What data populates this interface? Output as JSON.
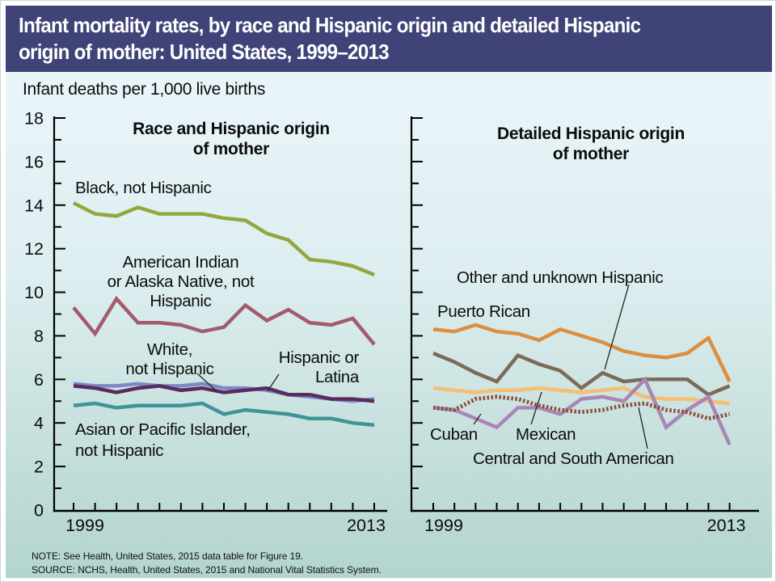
{
  "title_lines": [
    "Infant mortality rates, by race and Hispanic origin and detailed Hispanic",
    "origin of mother: United States, 1999–2013"
  ],
  "units_label": "Infant deaths per 1,000 live births",
  "notes": {
    "note": "NOTE: See Health, United States, 2015 data table for Figure 19.",
    "source": "SOURCE: NCHS, Health, United States, 2015 and National Vital Statistics System."
  },
  "colors": {
    "title_bar_bg": "#3f4377",
    "title_text": "#ffffff",
    "background_top": "#eaf5fa",
    "background_bottom": "#b3d4d0",
    "axis": "#000000"
  },
  "chart_data": [
    {
      "panel": "left",
      "type": "line",
      "title_lines": [
        "Race and Hispanic origin",
        "of mother"
      ],
      "x": [
        1999,
        2000,
        2001,
        2002,
        2003,
        2004,
        2005,
        2006,
        2007,
        2008,
        2009,
        2010,
        2011,
        2012,
        2013
      ],
      "x_axis_labels": [
        "1999",
        "2013"
      ],
      "ylim": [
        0,
        18
      ],
      "yticks": [
        0,
        2,
        4,
        6,
        8,
        10,
        12,
        14,
        16,
        18
      ],
      "grid": false,
      "series": [
        {
          "id": "black_nh",
          "name": "Black, not Hispanic",
          "label_lines": [
            "Black, not Hispanic"
          ],
          "color": "#93a73e",
          "values": [
            14.1,
            13.6,
            13.5,
            13.9,
            13.6,
            13.6,
            13.6,
            13.4,
            13.3,
            12.7,
            12.4,
            11.5,
            11.4,
            11.2,
            10.8
          ]
        },
        {
          "id": "aian_nh",
          "name": "American Indian or Alaska Native, not Hispanic",
          "label_lines": [
            "American Indian",
            "or Alaska Native, not",
            "Hispanic"
          ],
          "color": "#a35b6d",
          "values": [
            9.3,
            8.1,
            9.7,
            8.6,
            8.6,
            8.5,
            8.2,
            8.4,
            9.4,
            8.7,
            9.2,
            8.6,
            8.5,
            8.8,
            7.6
          ]
        },
        {
          "id": "white_nh",
          "name": "White, not Hispanic",
          "label_lines": [
            "White,",
            "not Hispanic"
          ],
          "color": "#7e88c9",
          "values": [
            5.8,
            5.7,
            5.7,
            5.8,
            5.7,
            5.7,
            5.8,
            5.6,
            5.6,
            5.5,
            5.3,
            5.2,
            5.1,
            5.0,
            5.1
          ]
        },
        {
          "id": "hispanic",
          "name": "Hispanic or Latina",
          "label_lines": [
            "Hispanic or",
            "Latina"
          ],
          "color": "#5b2b60",
          "values": [
            5.7,
            5.6,
            5.4,
            5.6,
            5.7,
            5.5,
            5.6,
            5.4,
            5.5,
            5.6,
            5.3,
            5.3,
            5.1,
            5.1,
            5.0
          ]
        },
        {
          "id": "api_nh",
          "name": "Asian or Pacific Islander, not Hispanic",
          "label_lines": [
            "Asian or Pacific Islander,",
            "not Hispanic"
          ],
          "color": "#3d9598",
          "values": [
            4.8,
            4.9,
            4.7,
            4.8,
            4.8,
            4.8,
            4.9,
            4.4,
            4.6,
            4.5,
            4.4,
            4.2,
            4.2,
            4.0,
            3.9
          ]
        }
      ]
    },
    {
      "panel": "right",
      "type": "line",
      "title_lines": [
        "Detailed Hispanic origin",
        "of mother"
      ],
      "x": [
        1999,
        2000,
        2001,
        2002,
        2003,
        2004,
        2005,
        2006,
        2007,
        2008,
        2009,
        2010,
        2011,
        2012,
        2013
      ],
      "x_axis_labels": [
        "1999",
        "2013"
      ],
      "ylim": [
        0,
        18
      ],
      "yticks": [
        0,
        2,
        4,
        6,
        8,
        10,
        12,
        14,
        16,
        18
      ],
      "grid": false,
      "series": [
        {
          "id": "puerto_rican",
          "name": "Puerto Rican",
          "label_lines": [
            "Puerto Rican"
          ],
          "color": "#dd8e3e",
          "values": [
            8.3,
            8.2,
            8.5,
            8.2,
            8.1,
            7.8,
            8.3,
            8.0,
            7.7,
            7.3,
            7.1,
            7.0,
            7.2,
            7.9,
            5.9
          ]
        },
        {
          "id": "other_unknown",
          "name": "Other and unknown Hispanic",
          "label_lines": [
            "Other and unknown Hispanic"
          ],
          "color": "#7b6b58",
          "values": [
            7.2,
            6.8,
            6.3,
            5.9,
            7.1,
            6.7,
            6.4,
            5.6,
            6.3,
            5.9,
            6.0,
            6.0,
            6.0,
            5.3,
            5.7
          ]
        },
        {
          "id": "mexican",
          "name": "Mexican",
          "label_lines": [
            "Mexican"
          ],
          "color": "#f6bd74",
          "values": [
            5.6,
            5.5,
            5.4,
            5.5,
            5.5,
            5.6,
            5.5,
            5.4,
            5.5,
            5.6,
            5.2,
            5.1,
            5.1,
            5.0,
            4.9
          ]
        },
        {
          "id": "cuban",
          "name": "Cuban",
          "label_lines": [
            "Cuban"
          ],
          "color": "#a886b5",
          "values": [
            4.7,
            4.6,
            4.2,
            3.8,
            4.7,
            4.7,
            4.4,
            5.1,
            5.2,
            5.0,
            6.0,
            3.8,
            4.6,
            5.2,
            3.0
          ]
        },
        {
          "id": "central_south",
          "name": "Central and South American",
          "label_lines": [
            "Central and South American"
          ],
          "color": "#8c4a38",
          "dashed": true,
          "values": [
            4.7,
            4.6,
            5.1,
            5.2,
            5.1,
            4.8,
            4.6,
            4.5,
            4.6,
            4.8,
            4.9,
            4.6,
            4.5,
            4.2,
            4.4
          ]
        }
      ]
    }
  ]
}
